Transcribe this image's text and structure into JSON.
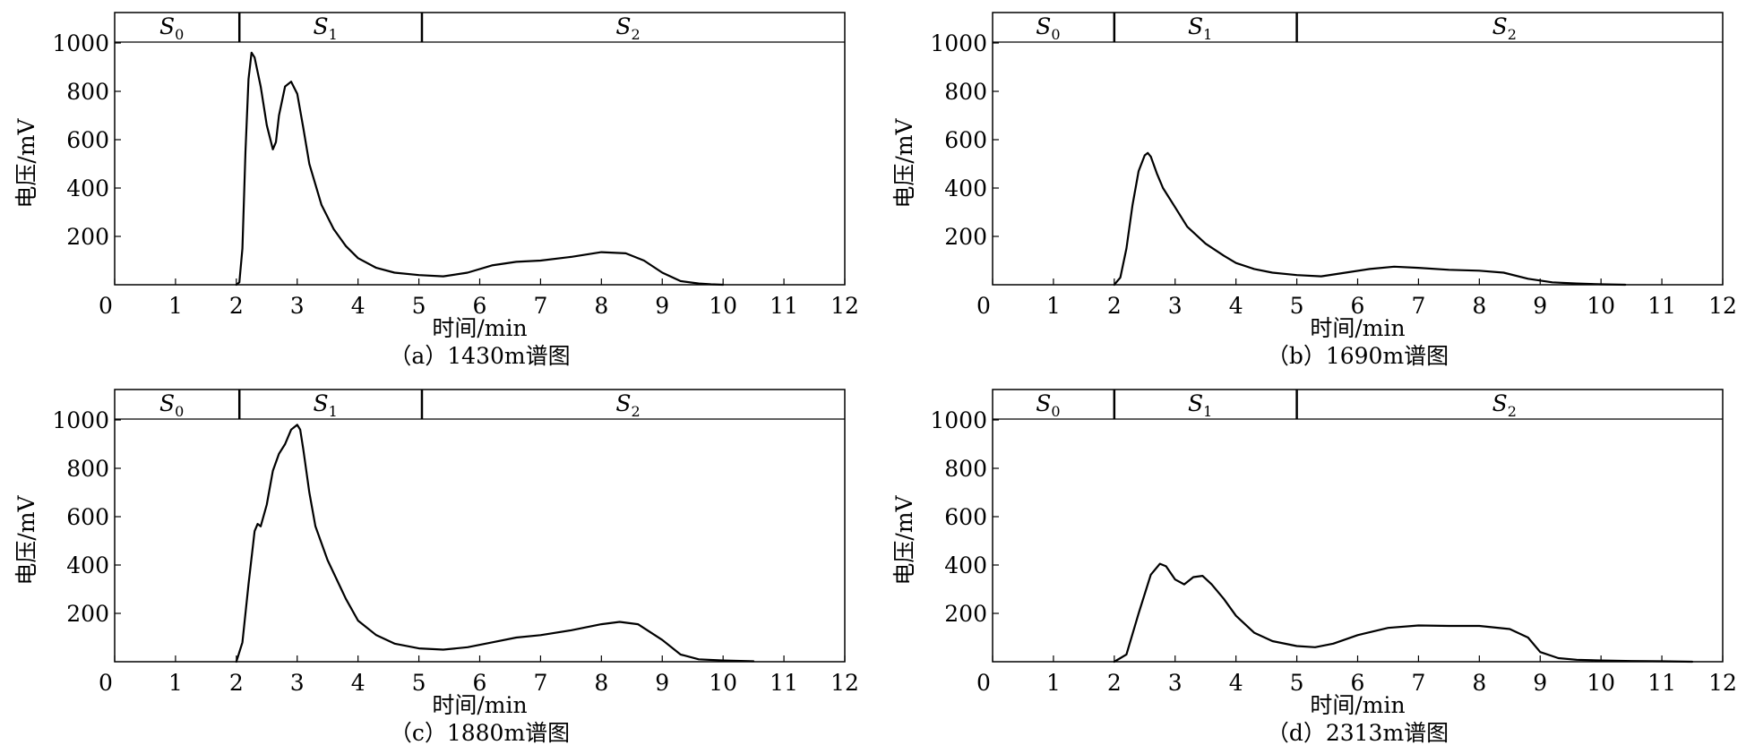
{
  "chart_data": [
    {
      "type": "line",
      "caption": "（a）1430m谱图",
      "xlabel": "时间/min",
      "ylabel": "电压/mV",
      "xlim": [
        0,
        12
      ],
      "ylim": [
        0,
        1000
      ],
      "xticks": [
        "0",
        "1",
        "2",
        "3",
        "4",
        "5",
        "6",
        "7",
        "8",
        "9",
        "10",
        "11",
        "12"
      ],
      "yticks": [
        "200",
        "400",
        "600",
        "800",
        "1000"
      ],
      "grid": false,
      "segments": [
        {
          "label": "S",
          "sub": "0",
          "start": 0,
          "end": 2.05
        },
        {
          "label": "S",
          "sub": "1",
          "start": 2.05,
          "end": 5.05
        },
        {
          "label": "S",
          "sub": "2",
          "start": 5.05,
          "end": 12
        }
      ],
      "series": [
        {
          "x": [
            2.0,
            2.05,
            2.1,
            2.15,
            2.2,
            2.25,
            2.3,
            2.4,
            2.5,
            2.6,
            2.65,
            2.7,
            2.8,
            2.9,
            3.0,
            3.1,
            3.2,
            3.4,
            3.6,
            3.8,
            4.0,
            4.3,
            4.6,
            5.0,
            5.4,
            5.8,
            6.2,
            6.6,
            7.0,
            7.5,
            8.0,
            8.4,
            8.7,
            9.0,
            9.3,
            9.6,
            9.8,
            10.0
          ],
          "y": [
            0,
            10,
            150,
            550,
            850,
            960,
            940,
            820,
            660,
            560,
            590,
            700,
            820,
            840,
            790,
            650,
            500,
            330,
            230,
            160,
            110,
            70,
            50,
            40,
            35,
            50,
            80,
            95,
            100,
            115,
            135,
            130,
            100,
            50,
            15,
            5,
            2,
            0
          ]
        }
      ]
    },
    {
      "type": "line",
      "caption": "（b）1690m谱图",
      "xlabel": "时间/min",
      "ylabel": "电压/mV",
      "xlim": [
        0,
        12
      ],
      "ylim": [
        0,
        1000
      ],
      "xticks": [
        "0",
        "1",
        "2",
        "3",
        "4",
        "5",
        "6",
        "7",
        "8",
        "9",
        "10",
        "11",
        "12"
      ],
      "yticks": [
        "200",
        "400",
        "600",
        "800",
        "1000"
      ],
      "grid": false,
      "segments": [
        {
          "label": "S",
          "sub": "0",
          "start": 0,
          "end": 2.0
        },
        {
          "label": "S",
          "sub": "1",
          "start": 2.0,
          "end": 5.0
        },
        {
          "label": "S",
          "sub": "2",
          "start": 5.0,
          "end": 12
        }
      ],
      "series": [
        {
          "x": [
            2.0,
            2.1,
            2.2,
            2.3,
            2.4,
            2.5,
            2.55,
            2.6,
            2.7,
            2.8,
            3.0,
            3.2,
            3.5,
            3.8,
            4.0,
            4.3,
            4.6,
            5.0,
            5.4,
            5.8,
            6.2,
            6.6,
            7.0,
            7.5,
            8.0,
            8.4,
            8.8,
            9.2,
            9.6,
            10.0,
            10.4
          ],
          "y": [
            0,
            30,
            150,
            330,
            470,
            535,
            545,
            530,
            460,
            400,
            320,
            240,
            170,
            120,
            90,
            65,
            50,
            40,
            35,
            50,
            65,
            75,
            70,
            62,
            58,
            50,
            25,
            10,
            5,
            2,
            0
          ]
        }
      ]
    },
    {
      "type": "line",
      "caption": "（c）1880m谱图",
      "xlabel": "时间/min",
      "ylabel": "电压/mV",
      "xlim": [
        0,
        12
      ],
      "ylim": [
        0,
        1000
      ],
      "xticks": [
        "0",
        "1",
        "2",
        "3",
        "4",
        "5",
        "6",
        "7",
        "8",
        "9",
        "10",
        "11",
        "12"
      ],
      "yticks": [
        "200",
        "400",
        "600",
        "800",
        "1000"
      ],
      "grid": false,
      "segments": [
        {
          "label": "S",
          "sub": "0",
          "start": 0,
          "end": 2.05
        },
        {
          "label": "S",
          "sub": "1",
          "start": 2.05,
          "end": 5.05
        },
        {
          "label": "S",
          "sub": "2",
          "start": 5.05,
          "end": 12
        }
      ],
      "series": [
        {
          "x": [
            2.0,
            2.1,
            2.2,
            2.3,
            2.35,
            2.4,
            2.5,
            2.6,
            2.7,
            2.8,
            2.9,
            3.0,
            3.05,
            3.1,
            3.2,
            3.3,
            3.5,
            3.8,
            4.0,
            4.3,
            4.6,
            5.0,
            5.4,
            5.8,
            6.2,
            6.6,
            7.0,
            7.5,
            8.0,
            8.3,
            8.6,
            9.0,
            9.3,
            9.6,
            10.0,
            10.5
          ],
          "y": [
            0,
            80,
            320,
            540,
            570,
            560,
            650,
            790,
            860,
            900,
            960,
            980,
            960,
            880,
            700,
            560,
            420,
            260,
            170,
            110,
            75,
            55,
            50,
            60,
            80,
            100,
            110,
            130,
            155,
            165,
            155,
            90,
            30,
            10,
            5,
            2
          ]
        }
      ]
    },
    {
      "type": "line",
      "caption": "（d）2313m谱图",
      "xlabel": "时间/min",
      "ylabel": "电压/mV",
      "xlim": [
        0,
        12
      ],
      "ylim": [
        0,
        1000
      ],
      "xticks": [
        "0",
        "1",
        "2",
        "3",
        "4",
        "5",
        "6",
        "7",
        "8",
        "9",
        "10",
        "11",
        "12"
      ],
      "yticks": [
        "200",
        "400",
        "600",
        "800",
        "1000"
      ],
      "grid": false,
      "segments": [
        {
          "label": "S",
          "sub": "0",
          "start": 0,
          "end": 2.0
        },
        {
          "label": "S",
          "sub": "1",
          "start": 2.0,
          "end": 5.0
        },
        {
          "label": "S",
          "sub": "2",
          "start": 5.0,
          "end": 12
        }
      ],
      "series": [
        {
          "x": [
            2.0,
            2.2,
            2.4,
            2.6,
            2.75,
            2.85,
            3.0,
            3.15,
            3.3,
            3.45,
            3.6,
            3.8,
            4.0,
            4.3,
            4.6,
            5.0,
            5.3,
            5.6,
            6.0,
            6.5,
            7.0,
            7.5,
            8.0,
            8.5,
            8.8,
            9.0,
            9.3,
            9.6,
            10.0,
            10.5,
            11.0,
            11.5
          ],
          "y": [
            0,
            30,
            200,
            360,
            405,
            395,
            340,
            320,
            350,
            355,
            320,
            260,
            190,
            120,
            85,
            65,
            60,
            75,
            110,
            140,
            150,
            148,
            148,
            135,
            100,
            40,
            15,
            8,
            5,
            3,
            2,
            0
          ]
        }
      ]
    }
  ]
}
